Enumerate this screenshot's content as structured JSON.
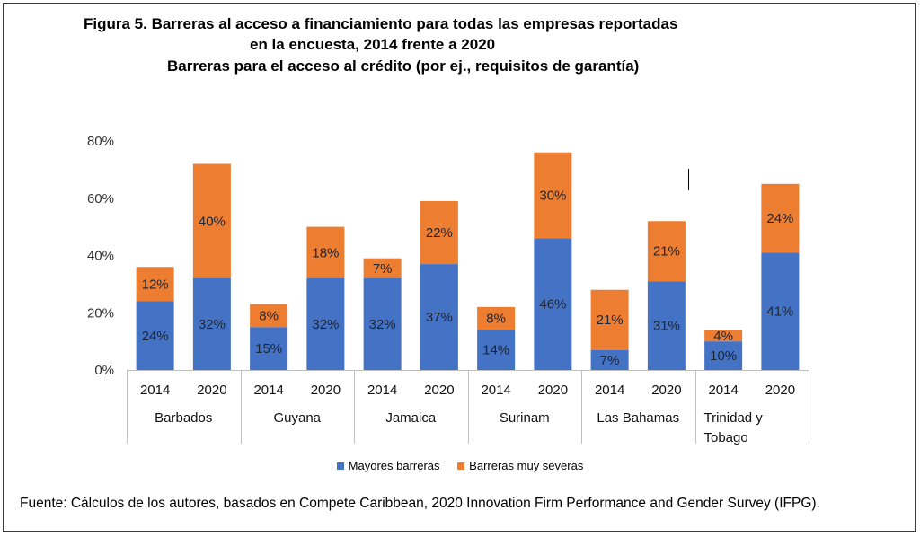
{
  "title_lines": [
    "Figura 5. Barreras al acceso a financiamiento para todas las empresas reportadas",
    "en la encuesta, 2014 frente a 2020",
    "Barreras para el acceso al crédito (por ej., requisitos de garantía)"
  ],
  "source": "Fuente: Cálculos de los autores, basados en Compete Caribbean, 2020 Innovation Firm Performance and Gender Survey (IFPG).",
  "colors": {
    "mayores": "#4472c4",
    "severas": "#ed7d31"
  },
  "chart_data": {
    "type": "bar",
    "stacked": true,
    "ylim": [
      0,
      80
    ],
    "yticks": [
      0,
      20,
      40,
      60,
      80
    ],
    "ytick_labels": [
      "0%",
      "20%",
      "40%",
      "60%",
      "80%"
    ],
    "grid": false,
    "legend_position": "bottom",
    "groups": [
      {
        "label": [
          "Barbados"
        ],
        "years": [
          "2014",
          "2020"
        ]
      },
      {
        "label": [
          "Guyana"
        ],
        "years": [
          "2014",
          "2020"
        ]
      },
      {
        "label": [
          "Jamaica"
        ],
        "years": [
          "2014",
          "2020"
        ]
      },
      {
        "label": [
          "Surinam"
        ],
        "years": [
          "2014",
          "2020"
        ]
      },
      {
        "label": [
          "Las Bahamas"
        ],
        "years": [
          "2014",
          "2020"
        ]
      },
      {
        "label": [
          "Trinidad y",
          "Tobago"
        ],
        "years": [
          "2014",
          "2020"
        ]
      }
    ],
    "series": [
      {
        "name": "Mayores barreras",
        "values": [
          24,
          32,
          15,
          32,
          32,
          37,
          14,
          46,
          7,
          31,
          10,
          41
        ],
        "labels": [
          "24%",
          "32%",
          "15%",
          "32%",
          "32%",
          "37%",
          "14%",
          "46%",
          "7%",
          "31%",
          "10%",
          "41%"
        ]
      },
      {
        "name": "Barreras muy severas",
        "values": [
          12,
          40,
          8,
          18,
          7,
          22,
          8,
          30,
          21,
          21,
          4,
          24
        ],
        "labels": [
          "12%",
          "40%",
          "8%",
          "18%",
          "7%",
          "22%",
          "8%",
          "30%",
          "21%",
          "21%",
          "4%",
          "24%"
        ]
      }
    ]
  }
}
